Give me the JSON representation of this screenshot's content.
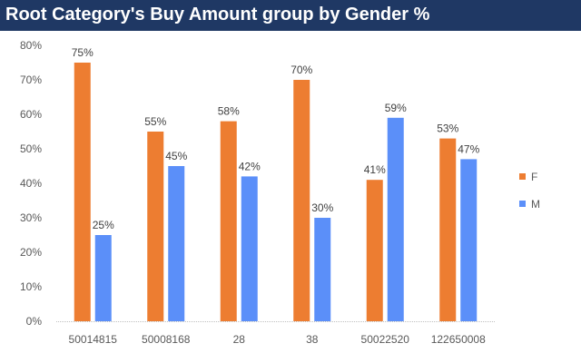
{
  "title": "Root Category's Buy Amount group by Gender %",
  "chart_data": {
    "type": "bar",
    "title": "Root Category's Buy Amount group by Gender %",
    "categories": [
      "50014815",
      "50008168",
      "28",
      "38",
      "50022520",
      "122650008"
    ],
    "series": [
      {
        "name": "F",
        "color": "#ed7d31",
        "values": [
          75,
          55,
          58,
          70,
          41,
          53
        ],
        "labels": [
          "75%",
          "55%",
          "58%",
          "70%",
          "41%",
          "53%"
        ]
      },
      {
        "name": "M",
        "color": "#5b8ff9",
        "values": [
          25,
          45,
          42,
          30,
          59,
          47
        ],
        "labels": [
          "25%",
          "45%",
          "42%",
          "30%",
          "59%",
          "47%"
        ]
      }
    ],
    "xlabel": "",
    "ylabel": "",
    "ylim": [
      0,
      80
    ],
    "yticks": [
      "0%",
      "10%",
      "20%",
      "30%",
      "40%",
      "50%",
      "60%",
      "70%",
      "80%"
    ],
    "grid": false,
    "legend_position": "right"
  }
}
